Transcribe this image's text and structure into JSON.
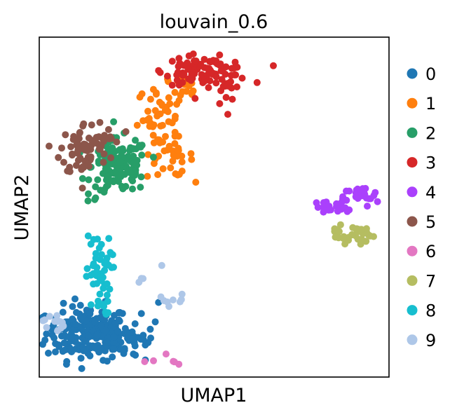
{
  "chart_data": {
    "type": "scatter",
    "title": "louvain_0.6",
    "xlabel": "UMAP1",
    "ylabel": "UMAP2",
    "xlim": [
      0,
      100
    ],
    "ylim": [
      0,
      100
    ],
    "grid": false,
    "ticks": false,
    "legend": {
      "placement": "right",
      "title": ""
    },
    "point_radius_px": 5,
    "series": [
      {
        "name": "0",
        "color": "#1f77b4",
        "centers": [
          [
            14,
            13,
            6,
            4,
            200
          ],
          [
            22,
            10,
            3,
            2,
            35
          ],
          [
            29,
            15,
            2.5,
            4,
            18
          ]
        ]
      },
      {
        "name": "1",
        "color": "#ff7f0e",
        "centers": [
          [
            34,
            76,
            3,
            5,
            40
          ],
          [
            38,
            65,
            3,
            3,
            30
          ],
          [
            41,
            84,
            2.5,
            3,
            20
          ]
        ]
      },
      {
        "name": "2",
        "color": "#279e68",
        "centers": [
          [
            23,
            62,
            4,
            4,
            130
          ],
          [
            16,
            55,
            2,
            2,
            6
          ]
        ]
      },
      {
        "name": "3",
        "color": "#d62728",
        "centers": [
          [
            48,
            90,
            6,
            2,
            80
          ],
          [
            53,
            84,
            1.5,
            3,
            12
          ],
          [
            40,
            91,
            2,
            2,
            10
          ]
        ]
      },
      {
        "name": "4",
        "color": "#aa40fc",
        "centers": [
          [
            92,
            53,
            2.5,
            1.5,
            25
          ],
          [
            82,
            50,
            2.5,
            1.5,
            18
          ],
          [
            87,
            50,
            2,
            1.5,
            8
          ]
        ]
      },
      {
        "name": "5",
        "color": "#8c564b",
        "centers": [
          [
            13,
            67,
            3.5,
            4,
            70
          ],
          [
            20,
            72,
            2,
            2,
            10
          ]
        ]
      },
      {
        "name": "6",
        "color": "#e377c2",
        "centers": [
          [
            33,
            6,
            1.5,
            1,
            3
          ],
          [
            40,
            4,
            1.2,
            0.6,
            3
          ]
        ]
      },
      {
        "name": "7",
        "color": "#b5bd61",
        "centers": [
          [
            91,
            42,
            2.5,
            1.5,
            28
          ],
          [
            85,
            42,
            1.8,
            1.2,
            10
          ]
        ]
      },
      {
        "name": "8",
        "color": "#17becf",
        "centers": [
          [
            17,
            30,
            1.8,
            6,
            55
          ]
        ]
      },
      {
        "name": "9",
        "color": "#aec7e8",
        "centers": [
          [
            4,
            16,
            1.5,
            1.5,
            12
          ],
          [
            38,
            23,
            2,
            1,
            8
          ],
          [
            29,
            28,
            0.8,
            1,
            3
          ],
          [
            35,
            33,
            0.5,
            0.5,
            1
          ]
        ]
      }
    ]
  }
}
